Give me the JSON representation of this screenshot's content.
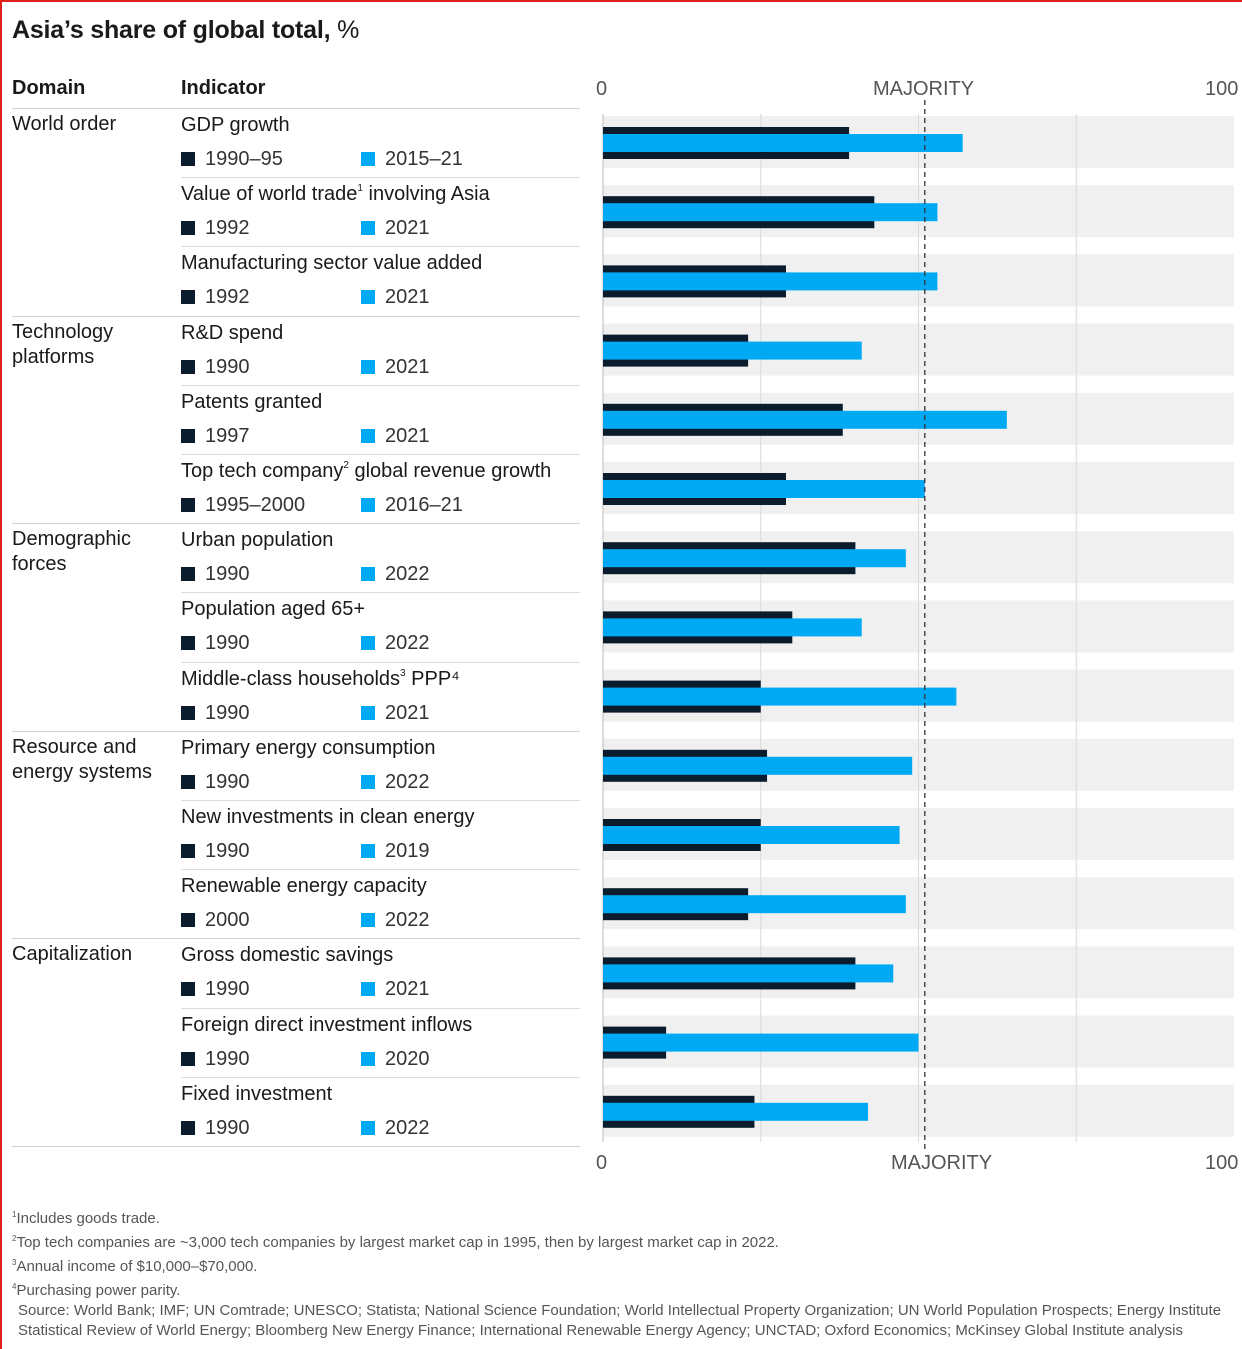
{
  "title": "Asia’s share of global total,",
  "title_unit": "%",
  "headers": {
    "domain": "Domain",
    "indicator": "Indicator"
  },
  "axis": {
    "min_label": "0",
    "mid_label": "MAJORITY",
    "max_label": "100"
  },
  "colors": {
    "early": "#0b1c2c",
    "late": "#00a9f4",
    "band": "#f0f0f0",
    "grid": "#d9d9d9"
  },
  "domains": [
    {
      "label": "World order"
    },
    {
      "label": "Technology platforms"
    },
    {
      "label": "Demographic forces"
    },
    {
      "label": "Resource and energy systems"
    },
    {
      "label": "Capitalization"
    }
  ],
  "rows": [
    {
      "domain": 0,
      "name": "GDP growth",
      "sup": "",
      "name_tail": "",
      "early": "1990–95",
      "late": "2015–21"
    },
    {
      "domain": 0,
      "name": "Value of world trade",
      "sup": "1",
      "name_tail": " involving Asia",
      "early": "1992",
      "late": "2021"
    },
    {
      "domain": 0,
      "name": "Manufacturing sector value added",
      "sup": "",
      "name_tail": "",
      "early": "1992",
      "late": "2021"
    },
    {
      "domain": 1,
      "name": "R&D spend",
      "sup": "",
      "name_tail": "",
      "early": "1990",
      "late": "2021"
    },
    {
      "domain": 1,
      "name": "Patents granted",
      "sup": "",
      "name_tail": "",
      "early": "1997",
      "late": "2021"
    },
    {
      "domain": 1,
      "name": "Top tech company",
      "sup": "2",
      "name_tail": " global revenue growth",
      "early": "1995–2000",
      "late": "2016–21"
    },
    {
      "domain": 2,
      "name": "Urban population",
      "sup": "",
      "name_tail": "",
      "early": "1990",
      "late": "2022"
    },
    {
      "domain": 2,
      "name": "Population aged 65+",
      "sup": "",
      "name_tail": "",
      "early": "1990",
      "late": "2022"
    },
    {
      "domain": 2,
      "name": "Middle-class households",
      "sup": "3",
      "name_tail": " PPP⁴",
      "early": "1990",
      "late": "2021"
    },
    {
      "domain": 3,
      "name": "Primary energy consumption",
      "sup": "",
      "name_tail": "",
      "early": "1990",
      "late": "2022"
    },
    {
      "domain": 3,
      "name": "New investments in clean energy",
      "sup": "",
      "name_tail": "",
      "early": "1990",
      "late": "2019"
    },
    {
      "domain": 3,
      "name": "Renewable energy capacity",
      "sup": "",
      "name_tail": "",
      "early": "2000",
      "late": "2022"
    },
    {
      "domain": 4,
      "name": "Gross domestic savings",
      "sup": "",
      "name_tail": "",
      "early": "1990",
      "late": "2021"
    },
    {
      "domain": 4,
      "name": "Foreign direct investment inflows",
      "sup": "",
      "name_tail": "",
      "early": "1990",
      "late": "2020"
    },
    {
      "domain": 4,
      "name": "Fixed investment",
      "sup": "",
      "name_tail": "",
      "early": "1990",
      "late": "2022"
    }
  ],
  "chart_data": {
    "type": "bar",
    "orientation": "horizontal",
    "title": "Asia’s share of global total, %",
    "xlim": [
      0,
      100
    ],
    "reference_line": {
      "value": 51,
      "label": "MAJORITY",
      "style": "dashed"
    },
    "grid": true,
    "categories": [
      "GDP growth",
      "Value of world trade involving Asia",
      "Manufacturing sector value added",
      "R&D spend",
      "Patents granted",
      "Top tech company global revenue growth",
      "Urban population",
      "Population aged 65+",
      "Middle-class households PPP",
      "Primary energy consumption",
      "New investments in clean energy",
      "Renewable energy capacity",
      "Gross domestic savings",
      "Foreign direct investment inflows",
      "Fixed investment"
    ],
    "series": [
      {
        "values": [
          39,
          43,
          29,
          23,
          38,
          29,
          40,
          30,
          25,
          26,
          25,
          23,
          40,
          10,
          24
        ]
      },
      {
        "values": [
          57,
          53,
          53,
          41,
          64,
          51,
          48,
          41,
          56,
          49,
          47,
          48,
          46,
          50,
          42
        ]
      }
    ]
  },
  "footnotes": [
    {
      "mark": "1",
      "text": "Includes goods trade."
    },
    {
      "mark": "2",
      "text": "Top tech companies are ~3,000 tech companies by largest market cap in 1995, then by largest market cap in 2022."
    },
    {
      "mark": "3",
      "text": "Annual income of $10,000–$70,000."
    },
    {
      "mark": "4",
      "text": "Purchasing power parity."
    }
  ],
  "source": "Source: World Bank; IMF; UN Comtrade; UNESCO; Statista; National Science Foundation; World Intellectual Property Organization; UN World Population Prospects; Energy Institute Statistical Review of World Energy; Bloomberg New Energy Finance; International Renewable Energy Agency; UNCTAD; Oxford Economics; McKinsey Global Institute analysis"
}
